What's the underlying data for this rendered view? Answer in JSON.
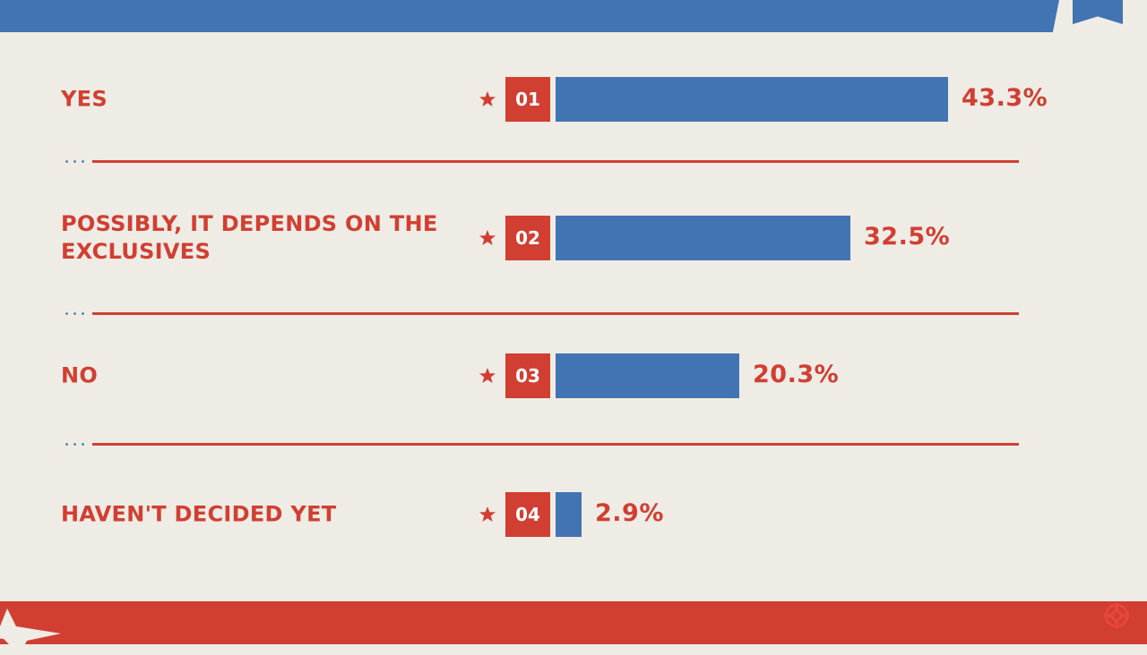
{
  "chart_data": {
    "type": "bar",
    "orientation": "horizontal",
    "categories": [
      "YES",
      "POSSIBLY, IT DEPENDS ON THE EXCLUSIVES",
      "NO",
      "HAVEN'T DECIDED YET"
    ],
    "ranks": [
      "01",
      "02",
      "03",
      "04"
    ],
    "values": [
      43.3,
      32.5,
      20.3,
      2.9
    ],
    "value_labels": [
      "43.3%",
      "32.5%",
      "20.3%",
      "2.9%"
    ],
    "unit": "%",
    "grid": false,
    "legend": "none",
    "colors": {
      "bar": "#4274b4",
      "accent": "#d13f33",
      "background": "#efebe5"
    }
  }
}
